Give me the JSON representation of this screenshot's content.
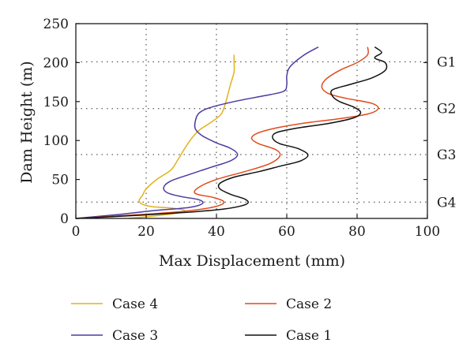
{
  "chart_data": {
    "type": "line",
    "xlabel": "Max Displacement (mm)",
    "ylabel": "Dam Height (m)",
    "xlim": [
      0,
      100
    ],
    "ylim": [
      0,
      250
    ],
    "xticks": [
      "0",
      "20",
      "40",
      "60",
      "80",
      "100"
    ],
    "yticks": [
      "0",
      "50",
      "100",
      "150",
      "200",
      "250"
    ],
    "grid": "dotted",
    "gallery_levels": [
      {
        "label": "G1",
        "y": 201
      },
      {
        "label": "G2",
        "y": 141
      },
      {
        "label": "G3",
        "y": 82
      },
      {
        "label": "G4",
        "y": 21
      }
    ],
    "series": [
      {
        "name": "Case 4",
        "color": "#e0b21a",
        "points": [
          [
            15,
            0
          ],
          [
            22,
            3
          ],
          [
            29,
            7
          ],
          [
            31,
            10
          ],
          [
            28,
            13
          ],
          [
            22,
            15
          ],
          [
            19,
            18
          ],
          [
            18,
            23
          ],
          [
            19,
            30
          ],
          [
            20,
            38
          ],
          [
            23,
            50
          ],
          [
            27,
            62
          ],
          [
            29,
            75
          ],
          [
            31,
            90
          ],
          [
            33,
            103
          ],
          [
            35,
            113
          ],
          [
            38,
            122
          ],
          [
            41,
            132
          ],
          [
            42,
            140
          ],
          [
            43,
            155
          ],
          [
            44,
            172
          ],
          [
            45,
            188
          ],
          [
            45,
            200
          ],
          [
            45,
            210
          ]
        ]
      },
      {
        "name": "Case 3",
        "color": "#4b3aa0",
        "points": [
          [
            0,
            0
          ],
          [
            12,
            5
          ],
          [
            22,
            10
          ],
          [
            32,
            14
          ],
          [
            36,
            19
          ],
          [
            35,
            24
          ],
          [
            30,
            28
          ],
          [
            26,
            33
          ],
          [
            25,
            40
          ],
          [
            27,
            48
          ],
          [
            32,
            56
          ],
          [
            38,
            65
          ],
          [
            44,
            74
          ],
          [
            46,
            82
          ],
          [
            44,
            90
          ],
          [
            40,
            97
          ],
          [
            36,
            106
          ],
          [
            34,
            115
          ],
          [
            34,
            125
          ],
          [
            35,
            135
          ],
          [
            38,
            142
          ],
          [
            45,
            150
          ],
          [
            53,
            157
          ],
          [
            59,
            163
          ],
          [
            60,
            172
          ],
          [
            60,
            183
          ],
          [
            61,
            195
          ],
          [
            65,
            210
          ],
          [
            69,
            220
          ]
        ]
      },
      {
        "name": "Case 2",
        "color": "#e04a1a",
        "points": [
          [
            0,
            0
          ],
          [
            15,
            4
          ],
          [
            28,
            8
          ],
          [
            36,
            12
          ],
          [
            41,
            17
          ],
          [
            42,
            22
          ],
          [
            39,
            27
          ],
          [
            34,
            32
          ],
          [
            35,
            40
          ],
          [
            40,
            50
          ],
          [
            48,
            60
          ],
          [
            55,
            70
          ],
          [
            58,
            80
          ],
          [
            57,
            88
          ],
          [
            52,
            96
          ],
          [
            50,
            103
          ],
          [
            52,
            110
          ],
          [
            58,
            117
          ],
          [
            66,
            123
          ],
          [
            75,
            128
          ],
          [
            83,
            134
          ],
          [
            86,
            141
          ],
          [
            84,
            148
          ],
          [
            77,
            154
          ],
          [
            72,
            160
          ],
          [
            70,
            168
          ],
          [
            71,
            178
          ],
          [
            75,
            190
          ],
          [
            80,
            200
          ],
          [
            83,
            210
          ],
          [
            83,
            220
          ]
        ]
      },
      {
        "name": "Case 1",
        "color": "#111111",
        "points": [
          [
            0,
            0
          ],
          [
            18,
            4
          ],
          [
            32,
            8
          ],
          [
            42,
            12
          ],
          [
            47,
            16
          ],
          [
            49,
            20
          ],
          [
            48,
            25
          ],
          [
            44,
            31
          ],
          [
            41,
            38
          ],
          [
            41,
            45
          ],
          [
            45,
            53
          ],
          [
            52,
            60
          ],
          [
            58,
            67
          ],
          [
            64,
            74
          ],
          [
            66,
            82
          ],
          [
            63,
            90
          ],
          [
            58,
            96
          ],
          [
            56,
            103
          ],
          [
            57,
            110
          ],
          [
            63,
            116
          ],
          [
            72,
            122
          ],
          [
            79,
            129
          ],
          [
            81,
            136
          ],
          [
            79,
            143
          ],
          [
            75,
            150
          ],
          [
            73,
            157
          ],
          [
            73,
            165
          ],
          [
            78,
            172
          ],
          [
            84,
            180
          ],
          [
            88,
            190
          ],
          [
            88,
            200
          ],
          [
            85,
            206
          ],
          [
            87,
            213
          ],
          [
            85,
            220
          ]
        ]
      }
    ]
  },
  "legend": [
    {
      "label": "Case 4",
      "color": "#e0b21a"
    },
    {
      "label": "Case 2",
      "color": "#e04a1a"
    },
    {
      "label": "Case 3",
      "color": "#4b3aa0"
    },
    {
      "label": "Case 1",
      "color": "#111111"
    }
  ]
}
